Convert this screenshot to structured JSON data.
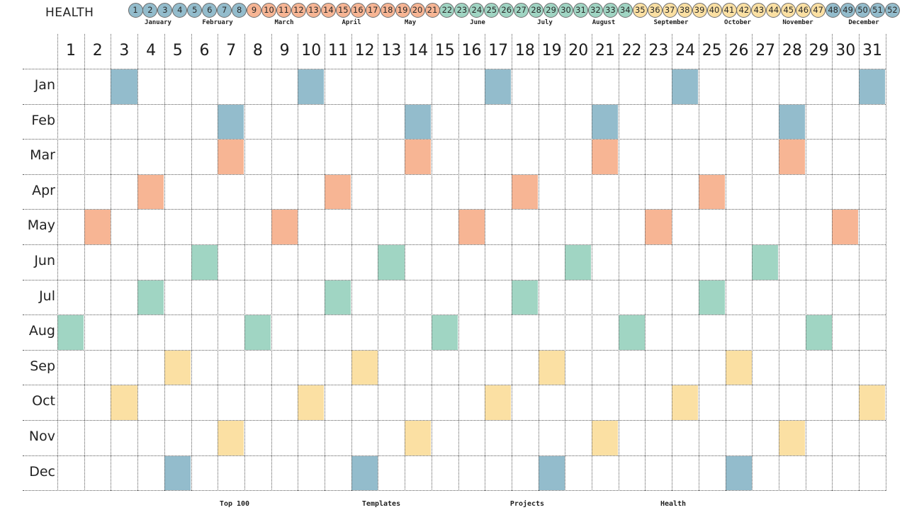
{
  "title": "HEALTH",
  "colors": {
    "blue": "#93bccc",
    "orange": "#f7b594",
    "green": "#a0d5c3",
    "yellow": "#fbe0a3",
    "grid": "#5a5a5a"
  },
  "week_colors": {
    "blue": [
      1,
      2,
      3,
      4,
      5,
      6,
      7,
      8,
      48,
      49,
      50,
      51,
      52
    ],
    "orange": [
      9,
      10,
      11,
      12,
      13,
      14,
      15,
      16,
      17,
      18,
      19,
      20,
      21
    ],
    "green": [
      22,
      23,
      24,
      25,
      26,
      27,
      28,
      29,
      30,
      31,
      32,
      33,
      34
    ],
    "yellow": [
      35,
      36,
      37,
      38,
      39,
      40,
      41,
      42,
      43,
      44,
      45,
      46,
      47
    ]
  },
  "weeks": [
    "1",
    "2",
    "3",
    "4",
    "5",
    "6",
    "7",
    "8",
    "9",
    "10",
    "11",
    "12",
    "13",
    "14",
    "15",
    "16",
    "17",
    "18",
    "19",
    "20",
    "21",
    "22",
    "23",
    "24",
    "25",
    "26",
    "27",
    "28",
    "29",
    "30",
    "31",
    "32",
    "33",
    "34",
    "35",
    "36",
    "37",
    "38",
    "39",
    "40",
    "41",
    "42",
    "43",
    "44",
    "45",
    "46",
    "47",
    "48",
    "49",
    "50",
    "51",
    "52"
  ],
  "month_names": [
    "January",
    "February",
    "March",
    "April",
    "May",
    "June",
    "July",
    "August",
    "September",
    "October",
    "November",
    "December"
  ],
  "days": [
    "1",
    "2",
    "3",
    "4",
    "5",
    "6",
    "7",
    "8",
    "9",
    "10",
    "11",
    "12",
    "13",
    "14",
    "15",
    "16",
    "17",
    "18",
    "19",
    "20",
    "21",
    "22",
    "23",
    "24",
    "25",
    "26",
    "27",
    "28",
    "29",
    "30",
    "31"
  ],
  "rows": [
    {
      "label": "Jan",
      "color": "blue",
      "days": [
        3,
        10,
        17,
        24,
        31
      ]
    },
    {
      "label": "Feb",
      "color": "blue",
      "days": [
        7,
        14,
        21,
        28
      ]
    },
    {
      "label": "Mar",
      "color": "orange",
      "days": [
        7,
        14,
        21,
        28
      ]
    },
    {
      "label": "Apr",
      "color": "orange",
      "days": [
        4,
        11,
        18,
        25
      ]
    },
    {
      "label": "May",
      "color": "orange",
      "days": [
        2,
        9,
        16,
        23,
        30
      ]
    },
    {
      "label": "Jun",
      "color": "green",
      "days": [
        6,
        13,
        20,
        27
      ]
    },
    {
      "label": "Jul",
      "color": "green",
      "days": [
        4,
        11,
        18,
        25
      ]
    },
    {
      "label": "Aug",
      "color": "green",
      "days": [
        1,
        8,
        15,
        22,
        29
      ]
    },
    {
      "label": "Sep",
      "color": "yellow",
      "days": [
        5,
        12,
        19,
        26
      ]
    },
    {
      "label": "Oct",
      "color": "yellow",
      "days": [
        3,
        10,
        17,
        24,
        31
      ]
    },
    {
      "label": "Nov",
      "color": "yellow",
      "days": [
        7,
        14,
        21,
        28
      ]
    },
    {
      "label": "Dec",
      "color": "blue",
      "days": [
        5,
        12,
        19,
        26
      ]
    }
  ],
  "footer_links": [
    "Top 100",
    "Templates",
    "Projects",
    "Health"
  ]
}
